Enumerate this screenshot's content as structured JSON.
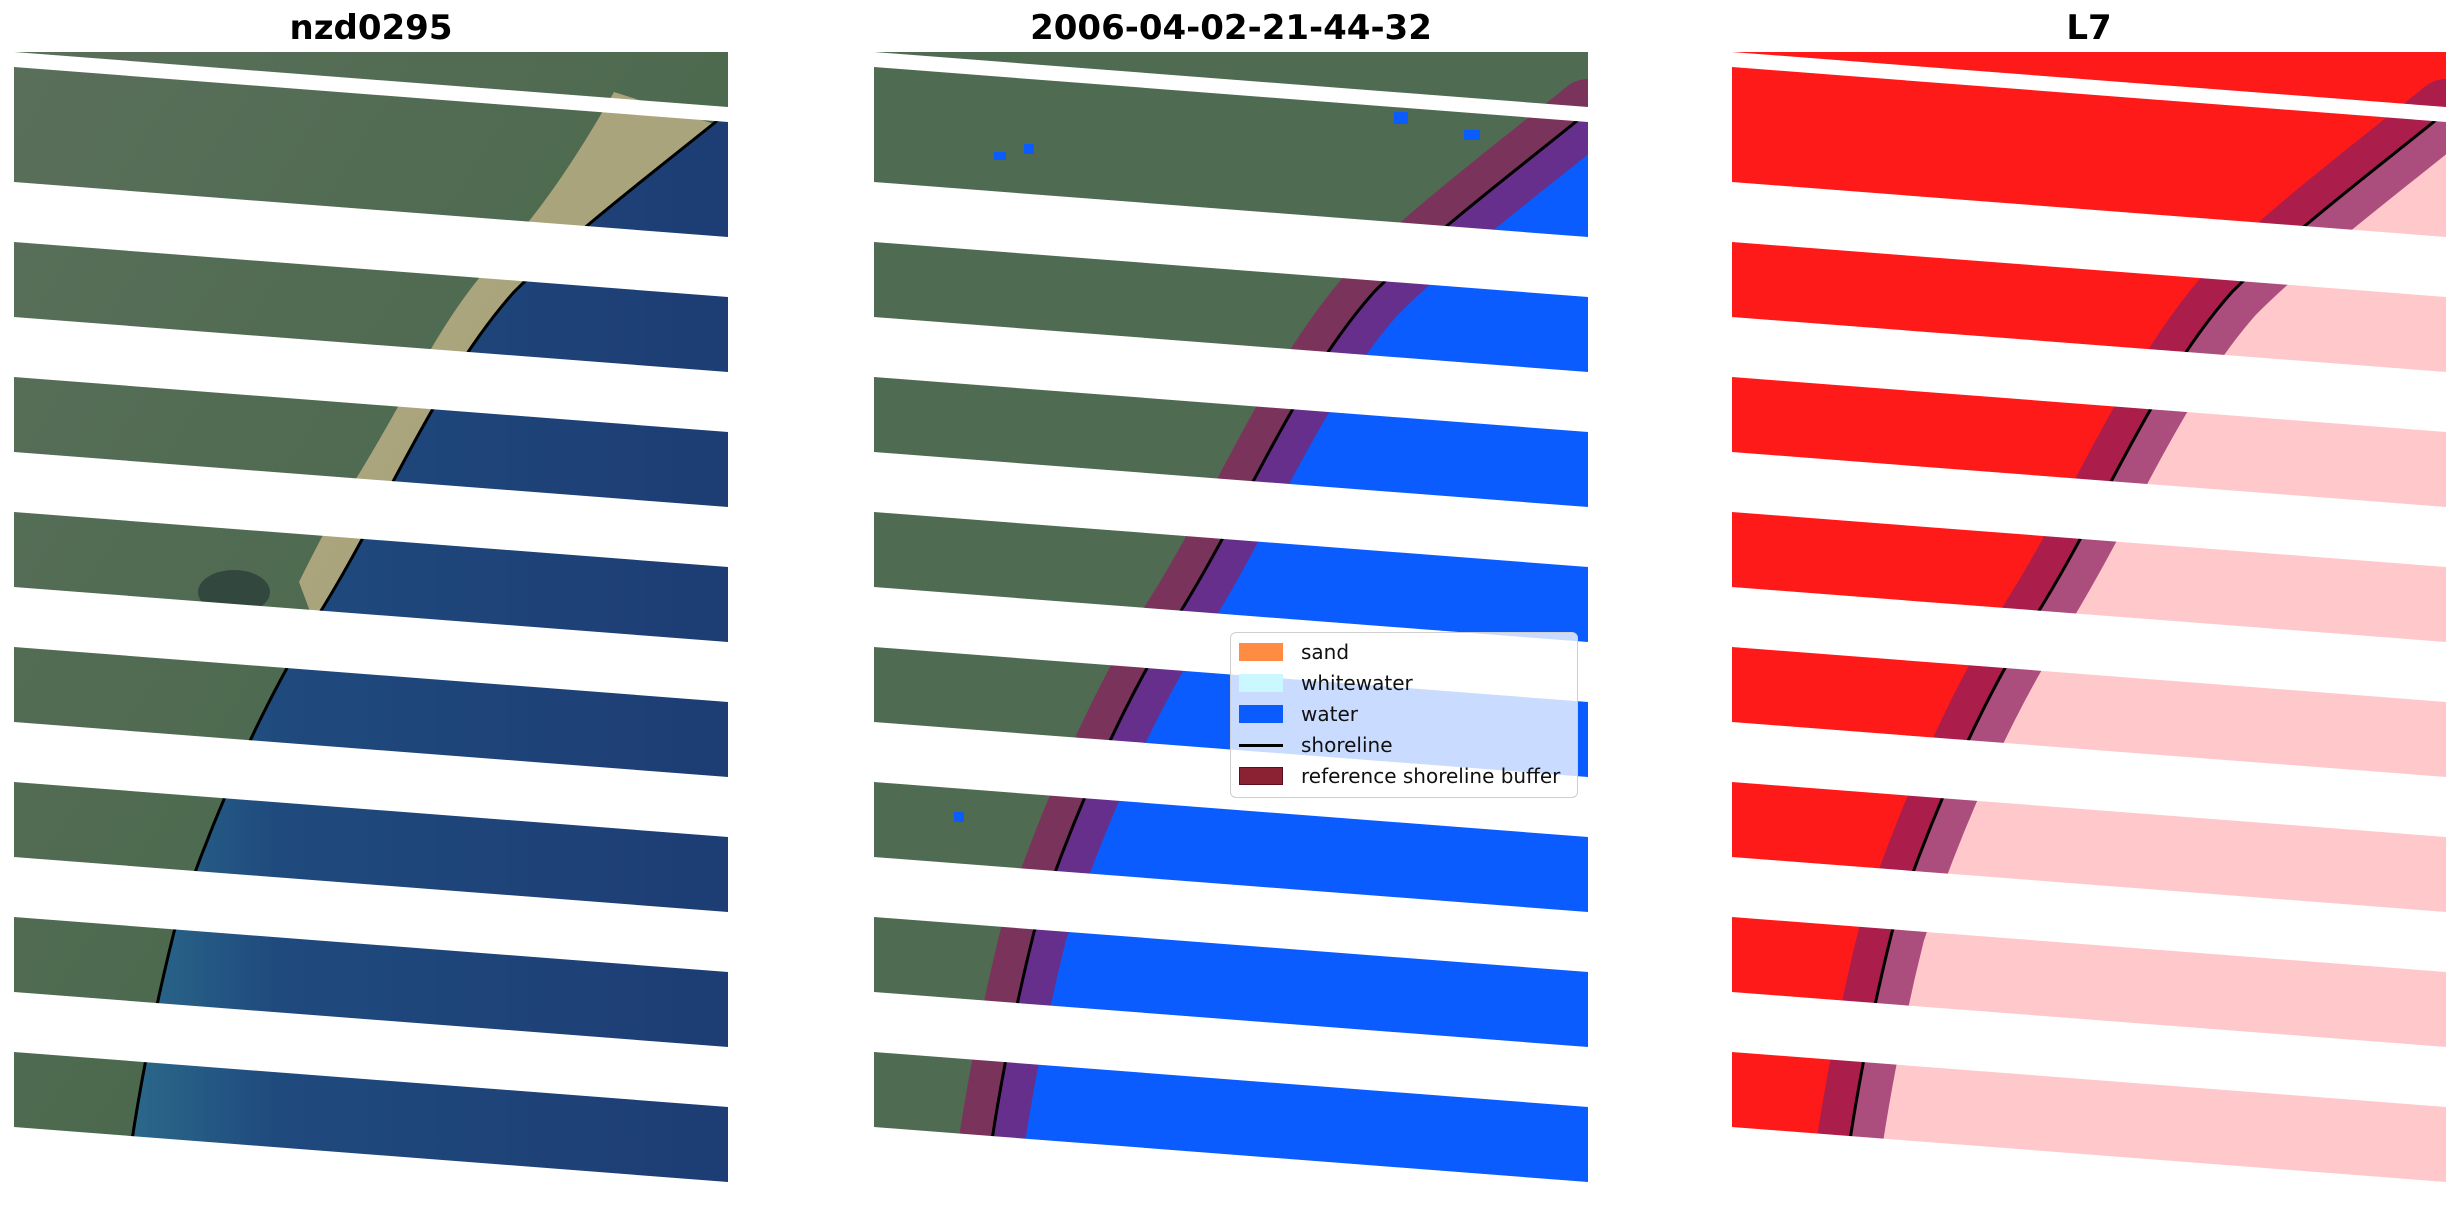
{
  "panels": [
    {
      "title": "nzd0295"
    },
    {
      "title": "2006-04-02-21-44-32"
    },
    {
      "title": "L7"
    }
  ],
  "legend": {
    "items": [
      {
        "label": "sand",
        "color": "#ff8c42",
        "kind": "patch"
      },
      {
        "label": "whitewater",
        "color": "#cbf7ff",
        "kind": "patch"
      },
      {
        "label": "water",
        "color": "#0a5cff",
        "kind": "patch"
      },
      {
        "label": "shoreline",
        "color": "#000000",
        "kind": "line"
      },
      {
        "label": "reference shoreline buffer",
        "color": "#8b2233",
        "kind": "patch"
      }
    ]
  },
  "colors": {
    "land": "#4f6b52",
    "sea": "#1f3f7a",
    "classified_water": "#0a5cff",
    "buffer": "#8b1f5e",
    "red_land": "#ff1a1a",
    "pink_water": "#ffc9cc",
    "stripe_gap": "#ffffff"
  }
}
